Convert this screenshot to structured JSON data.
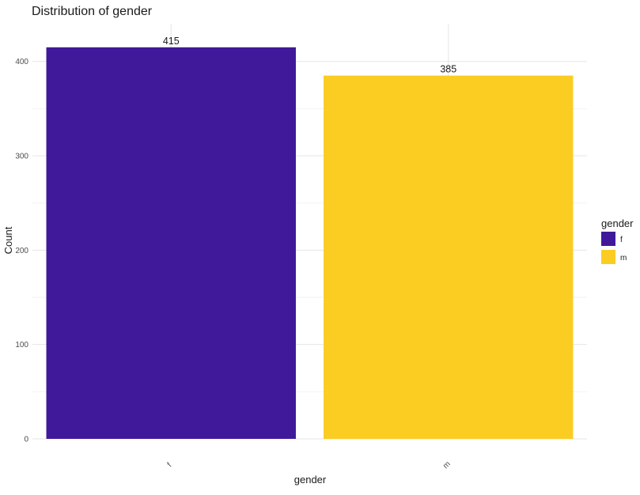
{
  "chart_data": {
    "type": "bar",
    "title": "Distribution of gender",
    "xlabel": "gender",
    "ylabel": "Count",
    "categories": [
      "f",
      "m"
    ],
    "values": [
      415,
      385
    ],
    "data_labels": [
      "415",
      "385"
    ],
    "colors": [
      "#40199a",
      "#fbcd23"
    ],
    "ylim": [
      0,
      440
    ],
    "yticks": [
      0,
      100,
      200,
      300,
      400
    ],
    "ytick_labels": [
      "0",
      "100",
      "200",
      "300",
      "400"
    ],
    "grid": true,
    "legend": {
      "title": "gender",
      "placement": "right",
      "entries": [
        "f",
        "m"
      ]
    }
  }
}
